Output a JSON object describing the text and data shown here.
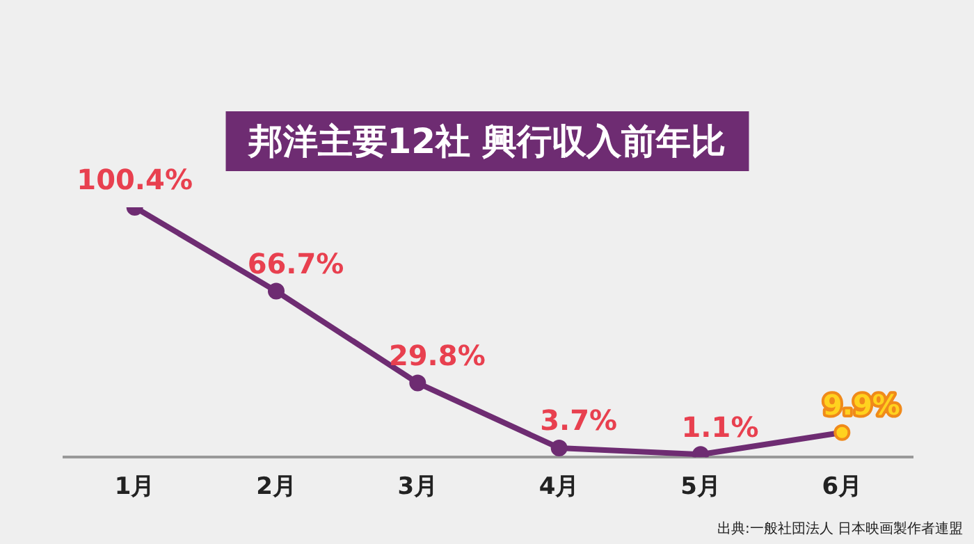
{
  "chart_data": {
    "type": "line",
    "title": "邦洋主要12社 興行収入前年比",
    "categories": [
      "1月",
      "2月",
      "3月",
      "4月",
      "5月",
      "6月"
    ],
    "series": [
      {
        "color": "#6e2c72",
        "colors": [
          "#6e2c72",
          "#6e2c72",
          "#6e2c72",
          "#6e2c72",
          "#6e2c72",
          "#ffd21f"
        ],
        "values": [
          100.4,
          66.7,
          29.8,
          3.7,
          1.1,
          9.9
        ],
        "value_labels": [
          "100.4%",
          "66.7%",
          "29.8%",
          "3.7%",
          "1.1%",
          "9.9%"
        ]
      }
    ],
    "marker": "circle",
    "legend": false,
    "grid": false,
    "tick_labels": "x",
    "annotations": [
      "出典:一般社団法人 日本映画製作者連盟"
    ]
  }
}
